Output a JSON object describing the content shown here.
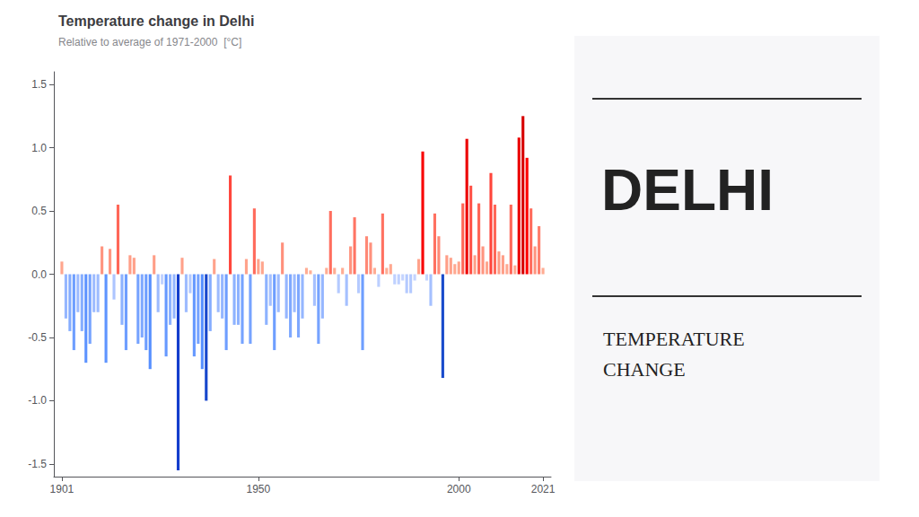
{
  "chart_data": {
    "type": "bar",
    "title": "Temperature change in Delhi",
    "subtitle": "Relative to average of 1971-2000  [°C]",
    "annotations": [
      "DELHI",
      "TEMPERATURE\nCHANGE"
    ],
    "x": [
      1901,
      1902,
      1903,
      1904,
      1905,
      1906,
      1907,
      1908,
      1909,
      1910,
      1911,
      1912,
      1913,
      1914,
      1915,
      1916,
      1917,
      1918,
      1919,
      1920,
      1921,
      1922,
      1923,
      1924,
      1925,
      1926,
      1927,
      1928,
      1929,
      1930,
      1931,
      1932,
      1933,
      1934,
      1935,
      1936,
      1937,
      1938,
      1939,
      1940,
      1941,
      1942,
      1943,
      1944,
      1945,
      1946,
      1947,
      1948,
      1949,
      1950,
      1951,
      1952,
      1953,
      1954,
      1955,
      1956,
      1957,
      1958,
      1959,
      1960,
      1961,
      1962,
      1963,
      1964,
      1965,
      1966,
      1967,
      1968,
      1969,
      1970,
      1971,
      1972,
      1973,
      1974,
      1975,
      1976,
      1977,
      1978,
      1979,
      1980,
      1981,
      1982,
      1983,
      1984,
      1985,
      1986,
      1987,
      1988,
      1989,
      1990,
      1991,
      1992,
      1993,
      1994,
      1995,
      1996,
      1997,
      1998,
      1999,
      2000,
      2001,
      2002,
      2003,
      2004,
      2005,
      2006,
      2007,
      2008,
      2009,
      2010,
      2011,
      2012,
      2013,
      2014,
      2015,
      2016,
      2017,
      2018,
      2019,
      2020,
      2021
    ],
    "values": [
      0.1,
      -0.35,
      -0.45,
      -0.6,
      -0.3,
      -0.45,
      -0.7,
      -0.55,
      -0.3,
      -0.3,
      0.22,
      -0.7,
      0.2,
      -0.2,
      0.55,
      -0.4,
      -0.6,
      0.15,
      0.13,
      -0.55,
      -0.5,
      -0.6,
      -0.75,
      0.15,
      -0.3,
      -0.08,
      -0.65,
      -0.4,
      -0.35,
      -1.55,
      0.13,
      -0.3,
      -0.15,
      -0.65,
      -0.55,
      -0.75,
      -1.0,
      -0.45,
      0.12,
      -0.3,
      -0.35,
      -0.6,
      0.78,
      -0.4,
      -0.4,
      -0.55,
      0.12,
      -0.55,
      0.52,
      0.12,
      0.1,
      -0.4,
      -0.25,
      -0.6,
      -0.3,
      0.25,
      -0.35,
      -0.5,
      -0.3,
      -0.5,
      -0.35,
      0.05,
      0.03,
      -0.25,
      -0.55,
      -0.35,
      0.05,
      0.5,
      0.05,
      -0.15,
      0.05,
      -0.25,
      0.22,
      0.45,
      -0.15,
      -0.6,
      0.3,
      0.25,
      0.05,
      -0.1,
      0.48,
      0.05,
      0.08,
      -0.08,
      -0.08,
      -0.05,
      -0.15,
      -0.15,
      -0.05,
      0.12,
      0.97,
      -0.05,
      -0.25,
      0.48,
      0.3,
      -0.82,
      0.15,
      0.13,
      0.08,
      0.1,
      0.56,
      1.07,
      0.7,
      0.15,
      0.56,
      0.22,
      0.1,
      0.8,
      0.55,
      0.18,
      0.15,
      0.08,
      0.55,
      0.07,
      1.08,
      1.25,
      0.92,
      0.52,
      0.22,
      0.38,
      0.05
    ],
    "colors": [
      "#ffa58d",
      "#95b6ff",
      "#85adff",
      "#6e9eff",
      "#9dbbff",
      "#85adff",
      "#5e94ff",
      "#76a3ff",
      "#9dbbff",
      "#9dbbff",
      "#ff947f",
      "#5e94ff",
      "#ff9781",
      "#adc5ff",
      "#ff6758",
      "#8db2ff",
      "#6e9eff",
      "#ff9e87",
      "#ffa18a",
      "#76a3ff",
      "#7ea8ff",
      "#6e9eff",
      "#568fff",
      "#ff9e87",
      "#9dbbff",
      "#bfd1ff",
      "#6699ff",
      "#8db2ff",
      "#95b6ff",
      "#143dcc",
      "#ffa18a",
      "#9dbbff",
      "#b4caff",
      "#6699ff",
      "#76a3ff",
      "#568fff",
      "#1746cc",
      "#85adff",
      "#ffa28b",
      "#9dbbff",
      "#95b6ff",
      "#6e9eff",
      "#ff473d",
      "#8db2ff",
      "#8db2ff",
      "#76a3ff",
      "#ffa28b",
      "#76a3ff",
      "#ff6b5c",
      "#ffa28b",
      "#ffa58d",
      "#8db2ff",
      "#a5c0ff",
      "#6e9eff",
      "#9dbbff",
      "#ff907c",
      "#95b6ff",
      "#7ea8ff",
      "#9dbbff",
      "#7ea8ff",
      "#95b6ff",
      "#ffac93",
      "#ffae95",
      "#a5c0ff",
      "#76a3ff",
      "#95b6ff",
      "#ffac93",
      "#ff6e5e",
      "#ffac93",
      "#b4caff",
      "#ffac93",
      "#a5c0ff",
      "#ff947f",
      "#ff7564",
      "#b4caff",
      "#6e9eff",
      "#ff8976",
      "#ff907c",
      "#ffac93",
      "#bccfff",
      "#ff7161",
      "#ffac93",
      "#ffa890",
      "#bfd1ff",
      "#bfd1ff",
      "#c4d4ff",
      "#b4caff",
      "#b4caff",
      "#c4d4ff",
      "#ffa28b",
      "#f80000",
      "#c4d4ff",
      "#a5c0ff",
      "#ff7161",
      "#ff8976",
      "#194bcc",
      "#ff9e87",
      "#ffa18a",
      "#ffa890",
      "#ffa58d",
      "#ff6657",
      "#ec0000",
      "#ff5247",
      "#ff9e87",
      "#ff6657",
      "#ff947f",
      "#ffa58d",
      "#ff453b",
      "#ff6758",
      "#ff9a84",
      "#ff9e87",
      "#ffa890",
      "#ff6758",
      "#ffa991",
      "#eb0000",
      "#d70000",
      "#fe0000",
      "#ff6b5c",
      "#ff947f",
      "#ff7e6c",
      "#ffac93"
    ],
    "xlim": [
      1899,
      2023
    ],
    "xticks": [
      1901,
      1950,
      2000,
      2021
    ],
    "ylim": [
      -1.6,
      1.6
    ],
    "yticks": [
      -1.5,
      {
        "value": -1.0,
        "label": "-1.0"
      },
      -0.5,
      {
        "value": 0.0,
        "label": "0.0"
      },
      0.5,
      {
        "value": 1.0,
        "label": "1.0"
      },
      1.5
    ],
    "grid": false
  }
}
